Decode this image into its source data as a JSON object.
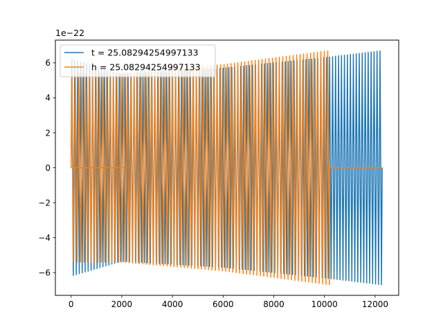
{
  "chart_data": {
    "type": "line",
    "title": "",
    "xlabel": "",
    "ylabel": "",
    "y_offset_label": "1e−22",
    "xlim": [
      -620,
      12930
    ],
    "ylim": [
      -7.3,
      7.3
    ],
    "x_ticks": [
      0,
      2000,
      4000,
      6000,
      8000,
      10000,
      12000
    ],
    "x_tick_labels": [
      "0",
      "2000",
      "4000",
      "6000",
      "8000",
      "10000",
      "12000"
    ],
    "y_ticks": [
      -6,
      -4,
      -2,
      0,
      2,
      4,
      6
    ],
    "y_tick_labels": [
      "−6",
      "−4",
      "−2",
      "0",
      "2",
      "4",
      "6"
    ],
    "grid": false,
    "legend_position": "top-left",
    "series": [
      {
        "name": "t = 25.08294254997133",
        "color": "#1f77b4",
        "x_start": 0,
        "x_end": 12280,
        "cycles": 105,
        "envelope": [
          [
            0,
            6.2
          ],
          [
            2000,
            5.35
          ],
          [
            6000,
            5.7
          ],
          [
            10000,
            6.3
          ],
          [
            12280,
            6.7
          ]
        ],
        "flat_segments": []
      },
      {
        "name": "h = 25.08294254997133",
        "color": "#ff7f0e",
        "x_start": 0,
        "x_end": 12280,
        "cycles": 90,
        "envelope": [
          [
            0,
            5.4
          ],
          [
            2000,
            5.4
          ],
          [
            6000,
            5.9
          ],
          [
            10200,
            6.7
          ]
        ],
        "flat_segments": [
          [
            0,
            2150
          ],
          [
            10200,
            12280
          ]
        ]
      }
    ]
  }
}
